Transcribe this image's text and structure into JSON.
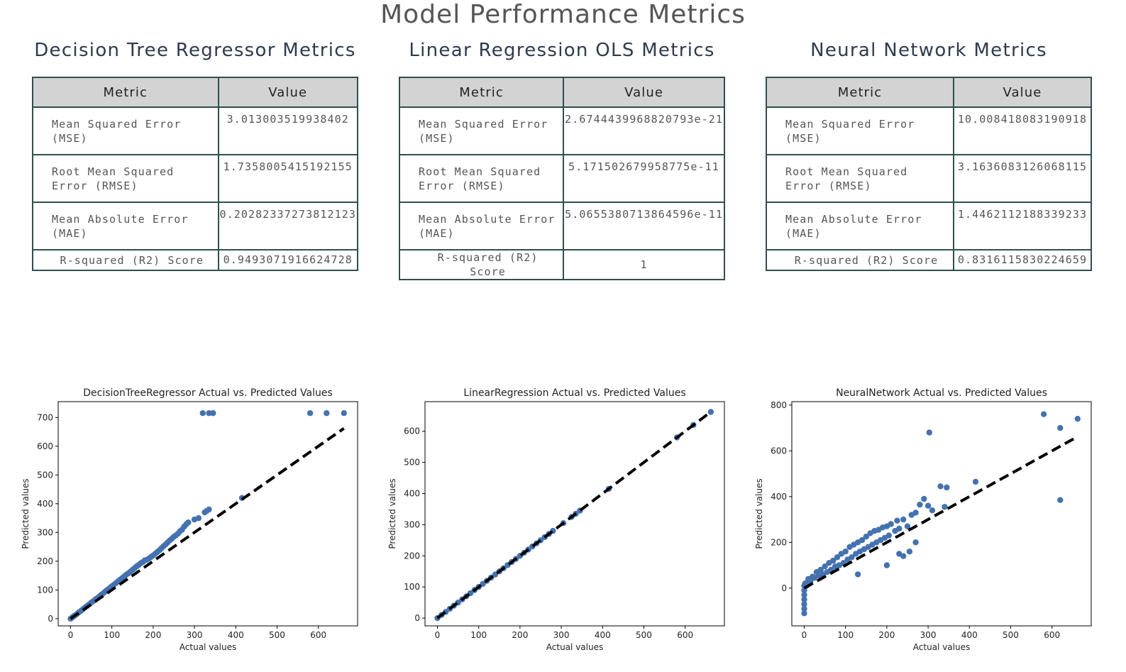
{
  "page": {
    "title": "Model Performance Metrics"
  },
  "table_headers": {
    "metric": "Metric",
    "value": "Value"
  },
  "panels": [
    {
      "title": "Decision Tree Regressor Metrics",
      "rows": [
        {
          "metric": "Mean Squared Error (MSE)",
          "value": "3.013003519938402"
        },
        {
          "metric": "Root Mean Squared Error (RMSE)",
          "value": "1.7358005415192155"
        },
        {
          "metric": "Mean Absolute Error (MAE)",
          "value": "0.20282337273812123"
        },
        {
          "metric": "R-squared (R2) Score",
          "value": "0.9493071916624728"
        }
      ]
    },
    {
      "title": "Linear Regression OLS Metrics",
      "rows": [
        {
          "metric": "Mean Squared Error (MSE)",
          "value": "2.6744439968820793e-21"
        },
        {
          "metric": "Root Mean Squared Error (RMSE)",
          "value": "5.171502679958775e-11"
        },
        {
          "metric": "Mean Absolute Error (MAE)",
          "value": "5.0655380713864596e-11"
        },
        {
          "metric": "R-squared (R2) Score",
          "value": "1"
        }
      ]
    },
    {
      "title": "Neural Network Metrics",
      "rows": [
        {
          "metric": "Mean Squared Error (MSE)",
          "value": "10.008418083190918"
        },
        {
          "metric": "Root Mean Squared Error (RMSE)",
          "value": "3.1636083126068115"
        },
        {
          "metric": "Mean Absolute Error (MAE)",
          "value": "1.4462112188339233"
        },
        {
          "metric": "R-squared (R2) Score",
          "value": "0.8316115830224659"
        }
      ]
    }
  ],
  "colors": {
    "points": "#4472b0",
    "diagonal": "#000000",
    "table_header_bg": "#d3d3d3",
    "table_border": "#2f4f4f"
  },
  "chart_data": [
    {
      "type": "scatter",
      "title": "DecisionTreeRegressor Actual vs. Predicted Values",
      "xlabel": "Actual values",
      "ylabel": "Predicted values",
      "xlim": [
        -30,
        695
      ],
      "ylim": [
        -25,
        755
      ],
      "xticks": [
        0,
        100,
        200,
        300,
        400,
        500,
        600
      ],
      "yticks": [
        0,
        100,
        200,
        300,
        400,
        500,
        600,
        700
      ],
      "diagonal": [
        [
          0,
          0
        ],
        [
          662,
          662
        ]
      ],
      "points": [
        [
          0,
          0
        ],
        [
          3,
          3
        ],
        [
          6,
          7
        ],
        [
          10,
          11
        ],
        [
          15,
          16
        ],
        [
          20,
          22
        ],
        [
          25,
          27
        ],
        [
          30,
          33
        ],
        [
          35,
          39
        ],
        [
          40,
          44
        ],
        [
          45,
          50
        ],
        [
          50,
          56
        ],
        [
          55,
          61
        ],
        [
          60,
          67
        ],
        [
          65,
          72
        ],
        [
          70,
          78
        ],
        [
          75,
          84
        ],
        [
          80,
          89
        ],
        [
          85,
          96
        ],
        [
          90,
          101
        ],
        [
          95,
          107
        ],
        [
          100,
          113
        ],
        [
          105,
          118
        ],
        [
          110,
          124
        ],
        [
          115,
          130
        ],
        [
          120,
          136
        ],
        [
          125,
          141
        ],
        [
          130,
          147
        ],
        [
          135,
          153
        ],
        [
          140,
          158
        ],
        [
          145,
          164
        ],
        [
          150,
          170
        ],
        [
          155,
          176
        ],
        [
          160,
          182
        ],
        [
          165,
          187
        ],
        [
          170,
          193
        ],
        [
          175,
          197
        ],
        [
          180,
          203
        ],
        [
          185,
          205
        ],
        [
          190,
          210
        ],
        [
          195,
          215
        ],
        [
          200,
          220
        ],
        [
          205,
          226
        ],
        [
          210,
          232
        ],
        [
          215,
          238
        ],
        [
          220,
          245
        ],
        [
          225,
          252
        ],
        [
          230,
          258
        ],
        [
          235,
          265
        ],
        [
          240,
          272
        ],
        [
          245,
          278
        ],
        [
          250,
          285
        ],
        [
          255,
          290
        ],
        [
          260,
          296
        ],
        [
          265,
          304
        ],
        [
          270,
          310
        ],
        [
          275,
          320
        ],
        [
          280,
          328
        ],
        [
          285,
          335
        ],
        [
          300,
          345
        ],
        [
          310,
          350
        ],
        [
          325,
          370
        ],
        [
          330,
          375
        ],
        [
          335,
          380
        ],
        [
          415,
          420
        ],
        [
          320,
          715
        ],
        [
          335,
          715
        ],
        [
          345,
          715
        ],
        [
          580,
          715
        ],
        [
          620,
          715
        ],
        [
          662,
          715
        ]
      ]
    },
    {
      "type": "scatter",
      "title": "LinearRegression Actual vs. Predicted Values",
      "xlabel": "Actual values",
      "ylabel": "Predicted values",
      "xlim": [
        -30,
        695
      ],
      "ylim": [
        -25,
        695
      ],
      "xticks": [
        0,
        100,
        200,
        300,
        400,
        500,
        600
      ],
      "yticks": [
        0,
        100,
        200,
        300,
        400,
        500,
        600
      ],
      "diagonal": [
        [
          0,
          0
        ],
        [
          662,
          662
        ]
      ],
      "points": [
        [
          0,
          0
        ],
        [
          10,
          10
        ],
        [
          20,
          20
        ],
        [
          30,
          30
        ],
        [
          40,
          40
        ],
        [
          50,
          50
        ],
        [
          60,
          60
        ],
        [
          70,
          70
        ],
        [
          80,
          80
        ],
        [
          90,
          90
        ],
        [
          100,
          100
        ],
        [
          110,
          110
        ],
        [
          120,
          120
        ],
        [
          130,
          130
        ],
        [
          140,
          140
        ],
        [
          150,
          150
        ],
        [
          160,
          160
        ],
        [
          170,
          170
        ],
        [
          180,
          180
        ],
        [
          190,
          190
        ],
        [
          200,
          200
        ],
        [
          210,
          210
        ],
        [
          220,
          220
        ],
        [
          230,
          230
        ],
        [
          240,
          240
        ],
        [
          250,
          250
        ],
        [
          260,
          260
        ],
        [
          270,
          270
        ],
        [
          280,
          280
        ],
        [
          305,
          305
        ],
        [
          325,
          325
        ],
        [
          335,
          335
        ],
        [
          345,
          345
        ],
        [
          415,
          415
        ],
        [
          580,
          580
        ],
        [
          620,
          620
        ],
        [
          662,
          662
        ]
      ]
    },
    {
      "type": "scatter",
      "title": "NeuralNetwork Actual vs. Predicted Values",
      "xlabel": "Actual values",
      "ylabel": "Predicted values",
      "xlim": [
        -30,
        695
      ],
      "ylim": [
        -165,
        815
      ],
      "xticks": [
        0,
        100,
        200,
        300,
        400,
        500,
        600
      ],
      "yticks": [
        0,
        200,
        400,
        600,
        800
      ],
      "diagonal": [
        [
          0,
          0
        ],
        [
          662,
          662
        ]
      ],
      "points": [
        [
          0,
          -110
        ],
        [
          0,
          -90
        ],
        [
          0,
          -70
        ],
        [
          0,
          -50
        ],
        [
          0,
          -30
        ],
        [
          0,
          -10
        ],
        [
          0,
          10
        ],
        [
          2,
          20
        ],
        [
          5,
          10
        ],
        [
          8,
          25
        ],
        [
          10,
          40
        ],
        [
          15,
          30
        ],
        [
          20,
          50
        ],
        [
          25,
          45
        ],
        [
          30,
          70
        ],
        [
          35,
          55
        ],
        [
          40,
          80
        ],
        [
          45,
          60
        ],
        [
          50,
          95
        ],
        [
          55,
          70
        ],
        [
          60,
          110
        ],
        [
          65,
          80
        ],
        [
          70,
          120
        ],
        [
          75,
          95
        ],
        [
          80,
          135
        ],
        [
          85,
          100
        ],
        [
          90,
          150
        ],
        [
          95,
          110
        ],
        [
          100,
          160
        ],
        [
          105,
          125
        ],
        [
          110,
          180
        ],
        [
          115,
          135
        ],
        [
          120,
          190
        ],
        [
          125,
          150
        ],
        [
          130,
          200
        ],
        [
          135,
          160
        ],
        [
          140,
          210
        ],
        [
          145,
          170
        ],
        [
          150,
          225
        ],
        [
          155,
          180
        ],
        [
          160,
          240
        ],
        [
          165,
          190
        ],
        [
          170,
          250
        ],
        [
          175,
          200
        ],
        [
          180,
          255
        ],
        [
          185,
          210
        ],
        [
          190,
          265
        ],
        [
          195,
          220
        ],
        [
          200,
          270
        ],
        [
          205,
          230
        ],
        [
          210,
          280
        ],
        [
          220,
          250
        ],
        [
          225,
          295
        ],
        [
          230,
          260
        ],
        [
          240,
          300
        ],
        [
          250,
          270
        ],
        [
          260,
          320
        ],
        [
          270,
          330
        ],
        [
          280,
          365
        ],
        [
          290,
          390
        ],
        [
          300,
          360
        ],
        [
          310,
          340
        ],
        [
          200,
          100
        ],
        [
          230,
          150
        ],
        [
          240,
          140
        ],
        [
          255,
          160
        ],
        [
          270,
          200
        ],
        [
          130,
          60
        ],
        [
          303,
          680
        ],
        [
          330,
          445
        ],
        [
          345,
          440
        ],
        [
          340,
          355
        ],
        [
          415,
          465
        ],
        [
          580,
          760
        ],
        [
          620,
          700
        ],
        [
          662,
          740
        ],
        [
          620,
          385
        ]
      ]
    }
  ]
}
